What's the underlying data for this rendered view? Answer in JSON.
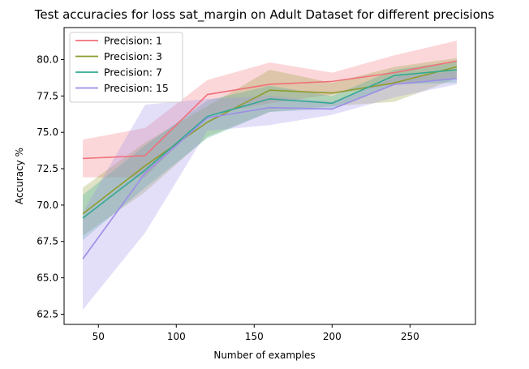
{
  "chart_data": {
    "type": "line",
    "title": "Test accuracies for loss sat_margin on Adult Dataset for different precisions",
    "xlabel": "Number of examples",
    "ylabel": "Accuracy %",
    "xlim": [
      28,
      292
    ],
    "ylim": [
      61.8,
      82.2
    ],
    "xticks": [
      50,
      100,
      150,
      200,
      250
    ],
    "yticks": [
      62.5,
      65.0,
      67.5,
      70.0,
      72.5,
      75.0,
      77.5,
      80.0
    ],
    "ytick_labels": [
      "62.5",
      "65.0",
      "67.5",
      "70.0",
      "72.5",
      "75.0",
      "77.5",
      "80.0"
    ],
    "grid": false,
    "legend_position": "top-left",
    "x": [
      40,
      80,
      120,
      160,
      200,
      240,
      280
    ],
    "series": [
      {
        "name": "Precision: 1",
        "color": "#f0707a",
        "values": [
          73.2,
          73.4,
          77.6,
          78.3,
          78.5,
          79.1,
          79.9
        ],
        "lower": [
          71.9,
          71.9,
          76.2,
          77.0,
          77.6,
          78.3,
          78.7
        ],
        "upper": [
          74.5,
          75.3,
          78.6,
          79.8,
          79.1,
          80.3,
          81.3
        ]
      },
      {
        "name": "Precision: 3",
        "color": "#8f9c2e",
        "values": [
          69.4,
          72.7,
          75.7,
          77.9,
          77.7,
          78.4,
          79.5
        ],
        "lower": [
          67.9,
          70.9,
          74.7,
          76.4,
          76.8,
          77.1,
          78.7
        ],
        "upper": [
          71.2,
          74.3,
          76.8,
          79.3,
          78.4,
          79.5,
          80.1
        ]
      },
      {
        "name": "Precision: 7",
        "color": "#32a893",
        "values": [
          69.1,
          72.4,
          76.1,
          77.3,
          77.0,
          78.9,
          79.3
        ],
        "lower": [
          67.6,
          71.2,
          74.6,
          76.4,
          76.6,
          78.3,
          78.4
        ],
        "upper": [
          70.7,
          74.1,
          77.2,
          78.2,
          77.5,
          79.3,
          79.9
        ]
      },
      {
        "name": "Precision: 15",
        "color": "#9d8ce8",
        "values": [
          66.3,
          72.2,
          76.0,
          76.7,
          76.6,
          78.3,
          78.7
        ],
        "lower": [
          62.8,
          68.1,
          75.1,
          75.5,
          76.2,
          77.4,
          78.3
        ],
        "upper": [
          69.5,
          76.9,
          77.3,
          77.5,
          77.1,
          78.8,
          79.2
        ]
      }
    ]
  }
}
